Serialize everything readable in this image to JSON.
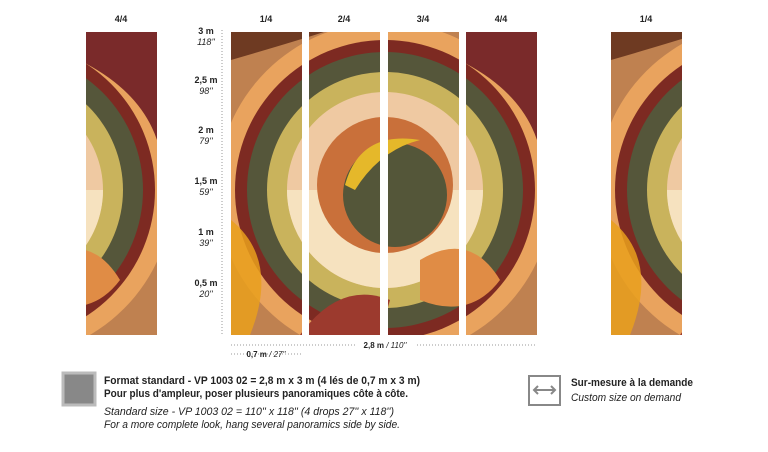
{
  "panel_labels": [
    "4/4",
    "1/4",
    "2/4",
    "3/4",
    "4/4",
    "1/4"
  ],
  "scale": [
    {
      "metric": "3 m",
      "imperial": "118''"
    },
    {
      "metric": "2,5 m",
      "imperial": "98''"
    },
    {
      "metric": "2 m",
      "imperial": "79''"
    },
    {
      "metric": "1,5 m",
      "imperial": "59''"
    },
    {
      "metric": "1 m",
      "imperial": "39''"
    },
    {
      "metric": "0,5 m",
      "imperial": "20''"
    }
  ],
  "drop_width": {
    "metric": "0,7 m",
    "imperial": "/ 27''"
  },
  "total_width": {
    "metric": "2,8 m",
    "imperial": "/ 110''"
  },
  "standard": {
    "line1": "Format standard - VP 1003 02 = 2,8 m x 3 m (4 lés de 0,7 m x 3 m)",
    "line2": "Pour plus d'ampleur, poser plusieurs panoramiques côte à côte.",
    "line3": "Standard size - VP 1003 02 = 110'' x 118'' (4 drops 27'' x 118'')",
    "line4": "For a more complete look, hang several panoramics side by side."
  },
  "custom": {
    "line1": "Sur-mesure à la demande",
    "line2": "Custom size on demand"
  }
}
